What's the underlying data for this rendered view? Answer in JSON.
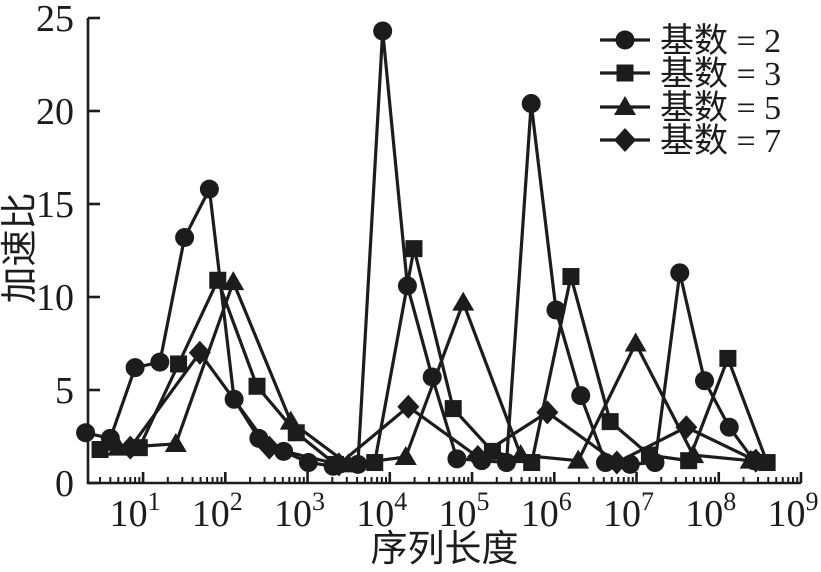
{
  "figure": {
    "background": "#ffffff",
    "ink_color": "#1c1c1c",
    "title": ""
  },
  "chart_data": {
    "type": "line",
    "title": "",
    "xlabel": "序列长度",
    "ylabel": "加速比",
    "x_scale": "log10",
    "x_axis": {
      "min": 2.14,
      "max": 1000000000,
      "tick_base": "10",
      "tick_exponents": [
        1,
        2,
        3,
        4,
        5,
        6,
        7,
        8,
        9
      ],
      "minor_ticks": "log-decade-2-to-9"
    },
    "y_axis": {
      "min": 0,
      "max": 25,
      "ticks": [
        0,
        5,
        10,
        15,
        20,
        25
      ]
    },
    "grid": false,
    "legend_position": "top-right",
    "series": [
      {
        "name": "基数 = 2",
        "marker": "circle",
        "x": [
          2,
          4,
          8,
          16,
          32,
          64,
          128,
          256,
          512,
          1024,
          2048,
          4096,
          8192,
          16384,
          32768,
          65536,
          131072,
          262144,
          524288,
          1048576,
          2097152,
          4194304,
          8388608,
          16777216,
          33554432,
          67108864,
          134217728,
          268435456
        ],
        "y": [
          2.7,
          2.4,
          6.2,
          6.5,
          13.2,
          15.8,
          4.5,
          2.4,
          1.7,
          1.1,
          0.9,
          1.0,
          24.3,
          10.6,
          5.7,
          1.3,
          1.2,
          1.1,
          20.4,
          9.3,
          4.7,
          1.1,
          1.0,
          1.1,
          11.3,
          5.5,
          3.0,
          1.2
        ]
      },
      {
        "name": "基数 = 3",
        "marker": "square",
        "x": [
          3,
          9,
          27,
          81,
          243,
          729,
          2187,
          6561,
          19683,
          59049,
          177147,
          531441,
          1594323,
          4782969,
          14348907,
          43046721,
          129140163,
          387420489
        ],
        "y": [
          1.8,
          1.9,
          6.4,
          10.9,
          5.2,
          2.7,
          1.0,
          1.1,
          12.6,
          4.0,
          1.7,
          1.1,
          11.1,
          3.3,
          1.5,
          1.2,
          6.7,
          1.1
        ]
      },
      {
        "name": "基数 = 5",
        "marker": "triangle",
        "x": [
          5,
          25,
          125,
          625,
          3125,
          15625,
          78125,
          390625,
          1953125,
          9765625,
          48828125,
          244140625
        ],
        "y": [
          1.9,
          2.1,
          10.8,
          3.3,
          1.0,
          1.4,
          9.7,
          1.5,
          1.2,
          7.5,
          1.5,
          1.2
        ]
      },
      {
        "name": "基数 = 7",
        "marker": "diamond",
        "x": [
          7,
          49,
          343,
          2401,
          16807,
          117649,
          823543,
          5764801,
          40353607,
          282475249
        ],
        "y": [
          1.9,
          7.0,
          1.9,
          1.0,
          4.1,
          1.4,
          3.8,
          1.1,
          3.0,
          1.2
        ]
      }
    ]
  }
}
